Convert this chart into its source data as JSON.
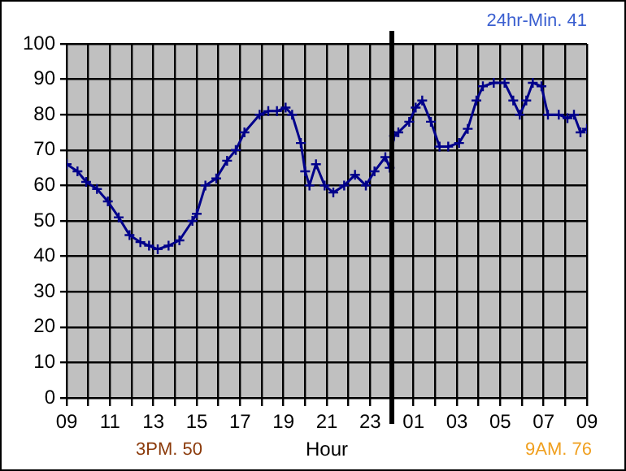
{
  "chart_data": {
    "type": "line",
    "xlabel": "Hour",
    "annotations": [
      "24hr-Min. 41",
      "3PM. 50",
      "9AM. 76"
    ],
    "x": [
      "--01-01T09:00",
      "--01-01T09:30",
      "--01-01T09:54",
      "--01-01T10:24",
      "--01-01T10:54",
      "--01-01T11:24",
      "--01-01T11:54",
      "--01-01T12:24",
      "--01-01T12:48",
      "--01-01T13:12",
      "--01-01T13:42",
      "--01-01T14:12",
      "--01-01T14:48",
      "--01-01T15:00",
      "--01-01T15:24",
      "--01-01T15:54",
      "--01-01T16:24",
      "--01-01T16:48",
      "--01-01T17:12",
      "--01-01T17:54",
      "--01-01T18:18",
      "--01-01T18:42",
      "--01-01T19:06",
      "--01-01T19:24",
      "--01-01T19:48",
      "--01-01T20:00",
      "--01-01T20:12",
      "--01-01T20:30",
      "--01-01T20:54",
      "--01-01T21:18",
      "--01-01T21:48",
      "--01-01T22:18",
      "--01-01T22:48",
      "--01-01T23:12",
      "--01-01T23:42",
      "--01-01T23:54",
      "--01-02T00:06",
      "--01-02T00:18",
      "--01-02T00:48",
      "--01-02T01:06",
      "--01-02T01:24",
      "--01-02T01:48",
      "--01-02T02:12",
      "--01-02T02:36",
      "--01-02T03:06",
      "--01-02T03:30",
      "--01-02T03:54",
      "--01-02T04:12",
      "--01-02T04:42",
      "--01-02T05:12",
      "--01-02T05:36",
      "--01-02T05:54",
      "--01-02T06:12",
      "--01-02T06:30",
      "--01-02T06:54",
      "--01-02T07:12",
      "--01-02T07:42",
      "--01-02T08:06",
      "--01-02T08:24",
      "--01-02T08:42",
      "--01-02T09:00"
    ],
    "series": [
      {
        "color": "#00008b",
        "values": [
          66,
          64,
          61,
          59,
          55.5,
          51,
          46,
          44,
          43,
          42,
          43,
          44.5,
          50,
          52,
          60,
          62,
          67,
          70,
          75,
          80,
          81,
          81,
          82,
          80,
          72,
          64,
          60,
          66,
          60,
          58,
          60,
          63,
          60,
          64,
          68,
          65,
          74,
          75,
          78,
          82,
          84,
          78,
          71,
          71,
          72,
          76,
          84,
          88,
          89,
          89,
          84,
          80,
          84,
          89,
          88,
          80,
          80,
          79,
          80,
          75,
          76
        ]
      }
    ],
    "xlim": [
      "--01-01T09:00",
      "--01-02T09:00"
    ],
    "xticks": [
      {
        "value": "--01-01T09:00",
        "label": "09"
      },
      {
        "value": "--01-01T10:00",
        "label": null
      },
      {
        "value": "--01-01T11:00",
        "label": "11"
      },
      {
        "value": "--01-01T12:00",
        "label": null
      },
      {
        "value": "--01-01T13:00",
        "label": "13"
      },
      {
        "value": "--01-01T14:00",
        "label": null
      },
      {
        "value": "--01-01T15:00",
        "label": "15"
      },
      {
        "value": "--01-01T16:00",
        "label": null
      },
      {
        "value": "--01-01T17:00",
        "label": "17"
      },
      {
        "value": "--01-01T18:00",
        "label": null
      },
      {
        "value": "--01-01T19:00",
        "label": "19"
      },
      {
        "value": "--01-01T20:00",
        "label": null
      },
      {
        "value": "--01-01T21:00",
        "label": "21"
      },
      {
        "value": "--01-01T22:00",
        "label": null
      },
      {
        "value": "--01-01T23:00",
        "label": "23"
      },
      {
        "value": "--01-02T00:00",
        "label": null
      },
      {
        "value": "--01-02T01:00",
        "label": "01"
      },
      {
        "value": "--01-02T02:00",
        "label": null
      },
      {
        "value": "--01-02T03:00",
        "label": "03"
      },
      {
        "value": "--01-02T04:00",
        "label": null
      },
      {
        "value": "--01-02T05:00",
        "label": "05"
      },
      {
        "value": "--01-02T06:00",
        "label": null
      },
      {
        "value": "--01-02T07:00",
        "label": "07"
      },
      {
        "value": "--01-02T08:00",
        "label": null
      },
      {
        "value": "--01-02T09:00",
        "label": "09"
      }
    ],
    "ylim": [
      0,
      100
    ],
    "yticks": [
      0,
      10,
      20,
      30,
      40,
      50,
      60,
      70,
      80,
      90,
      100
    ],
    "ref_lines": [
      {
        "axis": "x",
        "value": "--01-02T00:00",
        "color": "#000000"
      }
    ],
    "grid": true,
    "legend": false,
    "marker": "cross",
    "line_style": "solid"
  }
}
